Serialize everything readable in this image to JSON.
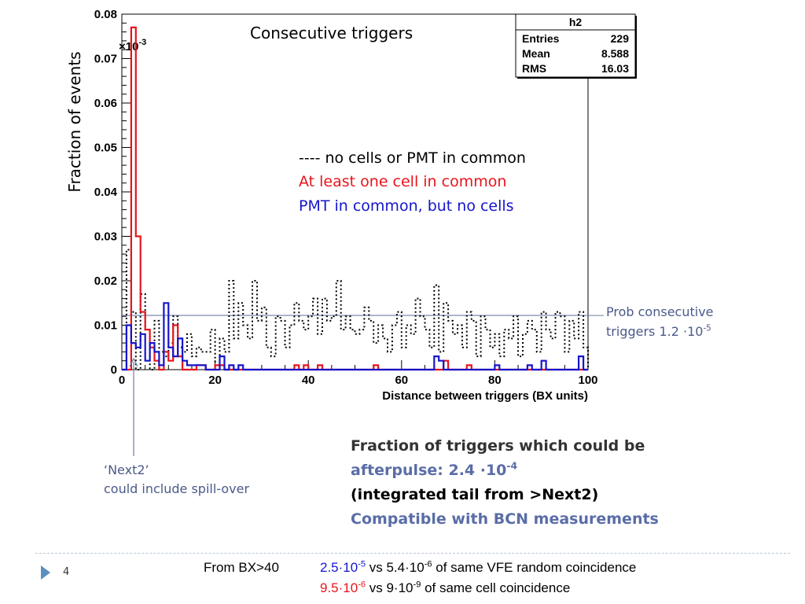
{
  "chart_data": {
    "type": "step-histogram",
    "title": "Consecutive triggers",
    "xlabel": "Distance between triggers (BX units)",
    "ylabel": "Fraction of events",
    "xlim": [
      0,
      100
    ],
    "ylim": [
      0,
      0.08
    ],
    "y_exponent_label": "×10",
    "y_exponent_power": "-3",
    "x_ticks": [
      "0",
      "20",
      "40",
      "60",
      "80",
      "100"
    ],
    "y_ticks": [
      "0",
      "0.01",
      "0.02",
      "0.03",
      "0.04",
      "0.05",
      "0.06",
      "0.07",
      "0.08"
    ],
    "bin_width": 2,
    "series": [
      {
        "name": "---- no cells or PMT in common",
        "color": "#000000",
        "style": "dotted",
        "values": [
          0,
          0.027,
          0.013,
          0.0,
          0.017,
          0.009,
          0.0,
          0.011,
          0.004,
          0.003,
          0.006,
          0.012,
          0.005,
          0.004,
          0.008,
          0.003,
          0.005,
          0.004,
          0.004,
          0.009,
          0.0,
          0.007,
          0.004,
          0.02,
          0.007,
          0.015,
          0.01,
          0.007,
          0.02,
          0.011,
          0.014,
          0.005,
          0.003,
          0.012,
          0.011,
          0.005,
          0.01,
          0.015,
          0.011,
          0.009,
          0.012,
          0.016,
          0.008,
          0.016,
          0.011,
          0.012,
          0.02,
          0.009,
          0.012,
          0.009,
          0.008,
          0.009,
          0.014,
          0.011,
          0.006,
          0.01,
          0.007,
          0.004,
          0.01,
          0.013,
          0.005,
          0.01,
          0.008,
          0.016,
          0.012,
          0.009,
          0.005,
          0.019,
          0.004,
          0.015,
          0.011,
          0.008,
          0.01,
          0.005,
          0.013,
          0.011,
          0.003,
          0.012,
          0.009,
          0.005,
          0.008,
          0.003,
          0.009,
          0.007,
          0.012,
          0.003,
          0.008,
          0.011,
          0.009,
          0.004,
          0.013,
          0.009,
          0.007,
          0.013,
          0.012,
          0.004,
          0.011,
          0.007,
          0.013,
          0.005
        ]
      },
      {
        "name": "At least one cell in common",
        "color": "#e8141b",
        "style": "solid",
        "values": [
          0,
          0.0,
          0.077,
          0.03,
          0.013,
          0.009,
          0.005,
          0.002,
          0.0,
          0.004,
          0.002,
          0.01,
          0.003,
          0.0,
          0.0,
          0.0,
          0.001,
          0.001,
          0.0,
          0.0,
          0.001,
          0.001,
          0.0,
          0.0,
          0.0,
          0.0,
          0.0,
          0.0,
          0.0,
          0.0,
          0.0,
          0.0,
          0.0,
          0.0,
          0.0,
          0.0,
          0.0,
          0.001,
          0.0,
          0.001,
          0.0,
          0.0,
          0.001,
          0.0,
          0.0,
          0.0,
          0.0,
          0.0,
          0.0,
          0.0,
          0.0,
          0.0,
          0.0,
          0.0,
          0.001,
          0.0,
          0.0,
          0.0,
          0.0,
          0.0,
          0.0,
          0.0,
          0.0,
          0.0,
          0.0,
          0.0,
          0.0,
          0.0,
          0.0,
          0.002,
          0.0,
          0.0,
          0.0,
          0.0,
          0.001,
          0.0,
          0.0,
          0.0,
          0.0,
          0.0,
          0.0,
          0.0,
          0.0,
          0.0,
          0.0,
          0.0,
          0.0,
          0.0,
          0.0,
          0.0,
          0.0,
          0.0,
          0.0,
          0.0,
          0.0,
          0.0,
          0.0,
          0.0,
          0.0,
          0.0
        ]
      },
      {
        "name": "PMT in common, but no cells",
        "color": "#1515cc",
        "style": "solid",
        "values": [
          0,
          0.01,
          0.006,
          0.005,
          0.008,
          0.002,
          0.006,
          0.004,
          0.001,
          0.015,
          0.005,
          0.003,
          0.007,
          0.002,
          0.001,
          0.001,
          0.001,
          0.001,
          0.0,
          0.0,
          0.0,
          0.003,
          0.0,
          0.001,
          0.0,
          0.001,
          0.0,
          0.0,
          0.0,
          0.0,
          0.0,
          0.0,
          0.0,
          0.0,
          0.0,
          0.0,
          0.0,
          0.0,
          0.0,
          0.0,
          0.0,
          0.0,
          0.0,
          0.0,
          0.0,
          0.0,
          0.0,
          0.0,
          0.0,
          0.0,
          0.0,
          0.0,
          0.0,
          0.0,
          0.0,
          0.0,
          0.0,
          0.0,
          0.0,
          0.0,
          0.0,
          0.0,
          0.0,
          0.0,
          0.0,
          0.0,
          0.0,
          0.003,
          0.002,
          0.0,
          0.0,
          0.0,
          0.0,
          0.0,
          0.0,
          0.0,
          0.0,
          0.0,
          0.0,
          0.0,
          0.001,
          0.0,
          0.0,
          0.0,
          0.0,
          0.0,
          0.0,
          0.001,
          0.0,
          0.0,
          0.002,
          0.0,
          0.0,
          0.0,
          0.0,
          0.0,
          0.0,
          0.0,
          0.003,
          0.0
        ]
      }
    ],
    "reference_line": {
      "y": 0.0122,
      "color": "#6d7ea1"
    },
    "stats_box": {
      "title": "h2",
      "rows": [
        {
          "label": "Entries",
          "value": "229"
        },
        {
          "label": "Mean",
          "value": "8.588"
        },
        {
          "label": "RMS",
          "value": "16.03"
        }
      ]
    },
    "grid": false
  },
  "legend": {
    "black": "---- no cells or PMT in common",
    "red": "At least one cell in common",
    "blue": "PMT in common, but no cells"
  },
  "annotations": {
    "prob_line1": "Prob consecutive",
    "prob_line2_prefix": "triggers 1.2 ·10",
    "prob_line2_exp": "-5",
    "next2_line1": "‘Next2’",
    "next2_line2": "could include spill-over"
  },
  "summary": {
    "line1": "Fraction of triggers which could be",
    "line2_prefix": "afterpulse: 2.4 ·10",
    "line2_exp": "-4",
    "line3": "(integrated tail from >Next2)",
    "line4": "Compatible with BCN measurements"
  },
  "footer": {
    "page_number": "4",
    "lead": "From BX>40",
    "row1_val": "2.5·10",
    "row1_exp": "-5",
    "row1_vs": " vs 5.4·10",
    "row1_vs_exp": "-6",
    "row1_tail": " of same VFE random coincidence",
    "row2_val": "9.5·10",
    "row2_exp": "-6",
    "row2_vs": " vs 9·10",
    "row2_vs_exp": "-9",
    "row2_tail": " of same cell coincidence"
  },
  "colors": {
    "accent_blue": "#1515cc",
    "accent_red": "#e8141b",
    "muted_blue": "#4b5a8a",
    "footer_arrow": "#5b8fbd"
  }
}
